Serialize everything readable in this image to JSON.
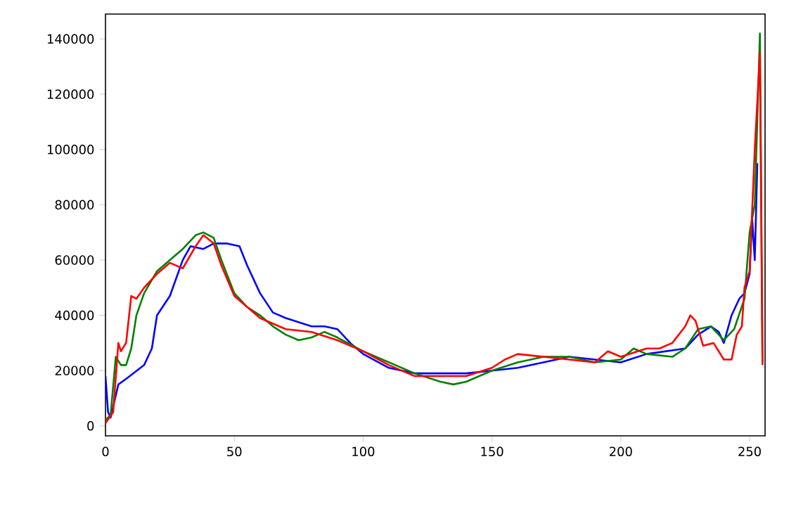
{
  "chart_data": {
    "type": "line",
    "xlim": [
      0,
      256
    ],
    "ylim": [
      -3600,
      149000
    ],
    "xticks": [
      0,
      50,
      100,
      150,
      200,
      250
    ],
    "yticks": [
      0,
      20000,
      40000,
      60000,
      80000,
      100000,
      120000,
      140000
    ],
    "series": [
      {
        "color": "#0000ff",
        "x": [
          0,
          1,
          2,
          5,
          8,
          15,
          18,
          20,
          25,
          30,
          33,
          38,
          42,
          47,
          52,
          55,
          60,
          65,
          70,
          80,
          85,
          90,
          95,
          100,
          110,
          120,
          130,
          140,
          150,
          160,
          170,
          180,
          190,
          200,
          210,
          225,
          230,
          235,
          238,
          240,
          243,
          246,
          248,
          250,
          251,
          252,
          253
        ],
        "values": [
          18000,
          5000,
          3000,
          15000,
          17000,
          22000,
          28000,
          40000,
          47000,
          60000,
          65000,
          64000,
          66000,
          66000,
          65000,
          58000,
          48000,
          41000,
          39000,
          36000,
          36000,
          35000,
          30000,
          26000,
          21000,
          19000,
          19000,
          19000,
          20000,
          21000,
          23000,
          25000,
          24000,
          23000,
          26000,
          28000,
          33000,
          36000,
          34000,
          30000,
          40000,
          46000,
          48000,
          55000,
          75000,
          60000,
          95000
        ]
      },
      {
        "color": "#008000",
        "x": [
          0,
          2,
          4,
          6,
          8,
          10,
          12,
          15,
          20,
          25,
          30,
          35,
          38,
          42,
          45,
          50,
          55,
          60,
          65,
          70,
          75,
          80,
          85,
          90,
          100,
          110,
          120,
          130,
          135,
          140,
          150,
          160,
          170,
          180,
          190,
          200,
          205,
          210,
          220,
          225,
          230,
          235,
          240,
          244,
          248,
          250,
          252,
          254,
          255
        ],
        "values": [
          2000,
          4000,
          25000,
          22000,
          22000,
          28000,
          40000,
          48000,
          56000,
          60000,
          64000,
          69000,
          70000,
          68000,
          60000,
          48000,
          43000,
          40000,
          36000,
          33000,
          31000,
          32000,
          34000,
          32000,
          27000,
          23000,
          19000,
          16000,
          15000,
          16000,
          20000,
          23000,
          25000,
          25000,
          23000,
          24000,
          28000,
          26000,
          25000,
          28000,
          35000,
          36000,
          31000,
          35000,
          46000,
          70000,
          80000,
          142000,
          23000
        ]
      },
      {
        "color": "#ff0000",
        "x": [
          0,
          3,
          5,
          6,
          8,
          10,
          12,
          15,
          20,
          25,
          30,
          35,
          38,
          42,
          45,
          50,
          55,
          60,
          70,
          80,
          90,
          100,
          110,
          120,
          130,
          140,
          150,
          155,
          160,
          170,
          180,
          190,
          195,
          200,
          210,
          215,
          220,
          225,
          227,
          229,
          232,
          236,
          240,
          243,
          245,
          247,
          248,
          250,
          252,
          254,
          255
        ],
        "values": [
          1000,
          5000,
          30000,
          27000,
          30000,
          47000,
          46000,
          50000,
          55000,
          59000,
          57000,
          65000,
          69000,
          66000,
          58000,
          47000,
          43000,
          39000,
          35000,
          34000,
          31000,
          27000,
          22000,
          18000,
          18000,
          18000,
          21000,
          24000,
          26000,
          25000,
          24000,
          23000,
          27000,
          25000,
          28000,
          28000,
          30000,
          36000,
          40000,
          38000,
          29000,
          30000,
          24000,
          24000,
          33000,
          36000,
          50000,
          56000,
          100000,
          135000,
          22000
        ]
      }
    ]
  }
}
